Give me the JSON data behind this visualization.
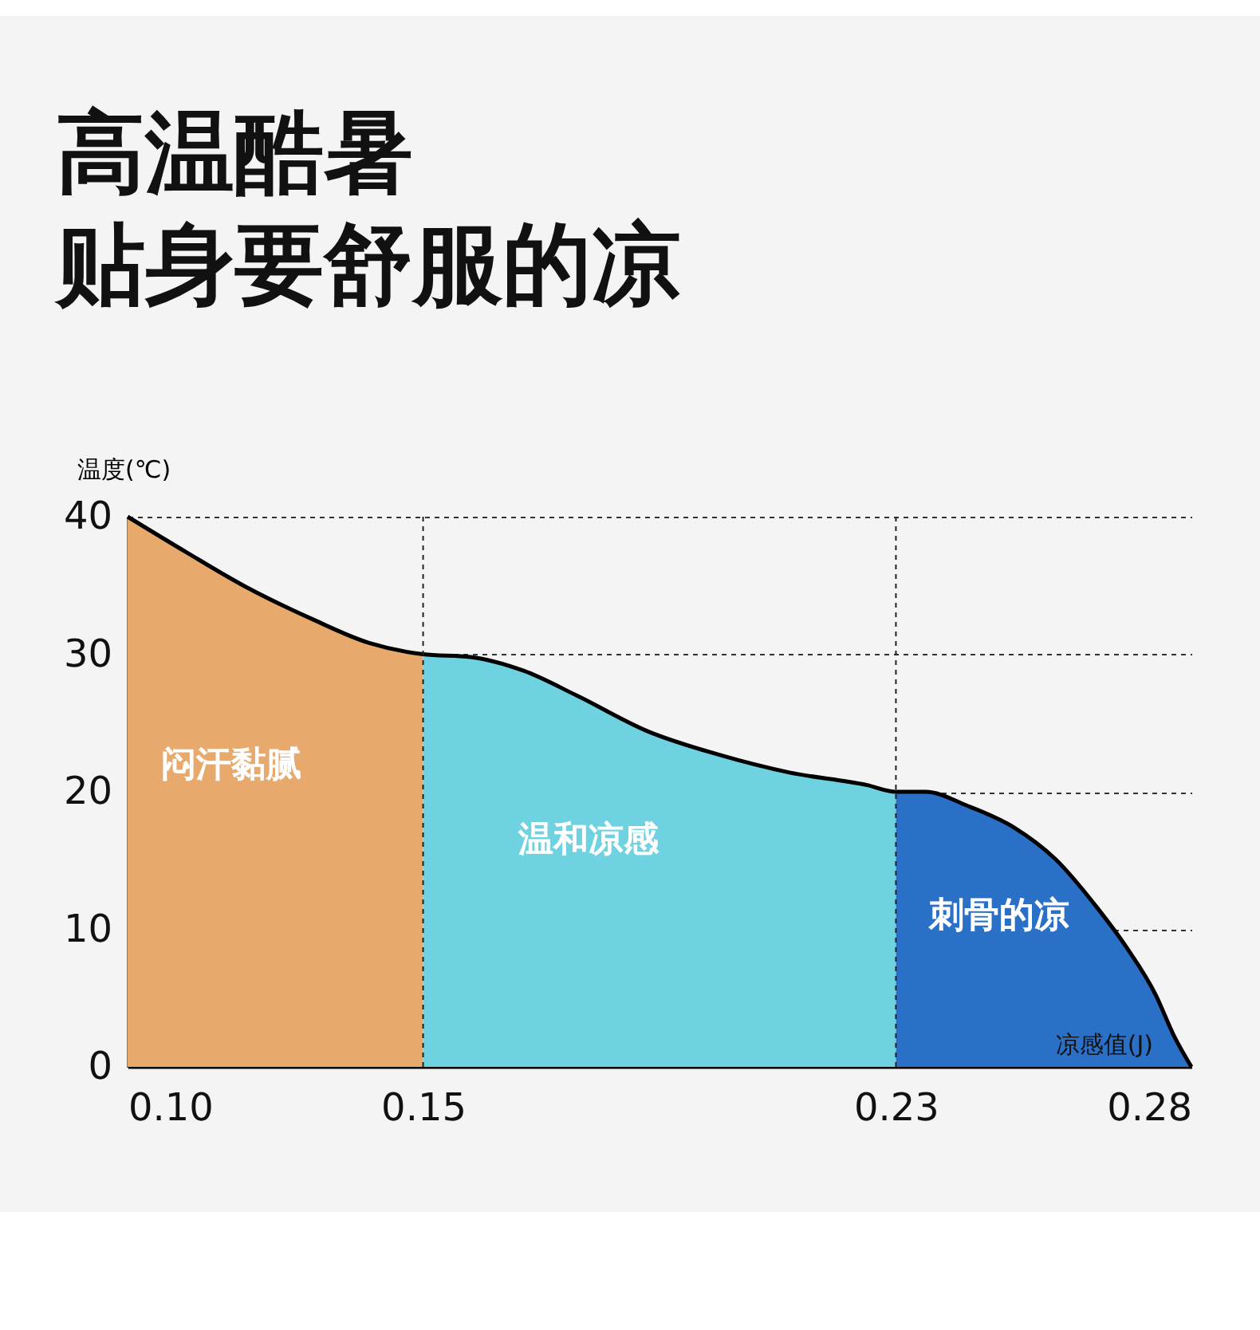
{
  "chart_data": {
    "type": "area",
    "title": "高温酷暑",
    "subtitle": "贴身要舒服的凉",
    "xlabel": "凉感值(J)",
    "ylabel": "温度(℃)",
    "xlim": [
      0.1,
      0.28
    ],
    "xticks": [
      {
        "value": 0.1,
        "label": "0.10"
      },
      0.15,
      0.23,
      0.28
    ],
    "ylim": [
      0,
      40
    ],
    "yticks": [
      0,
      10,
      20,
      30,
      40
    ],
    "grid": "y",
    "ref_lines": [
      {
        "axis": "x",
        "value": 0.15,
        "line_style": "dashed"
      },
      {
        "axis": "x",
        "value": 0.23,
        "line_style": "dashed"
      }
    ],
    "series": [
      {
        "name": "闷汗黏腻",
        "type": "area",
        "color": "#e8a96c",
        "x": [
          0.1,
          0.11,
          0.12,
          0.131,
          0.141,
          0.15
        ],
        "values": [
          40,
          37.4,
          34.9,
          32.6,
          30.8,
          30
        ]
      },
      {
        "name": "温和凉感",
        "type": "area",
        "color": "#6fd2e0",
        "x": [
          0.15,
          0.158,
          0.167,
          0.176,
          0.188,
          0.2,
          0.212,
          0.225,
          0.23
        ],
        "values": [
          30,
          29.8,
          28.8,
          27,
          24.4,
          22.7,
          21.4,
          20.5,
          20
        ]
      },
      {
        "name": "刺骨的凉",
        "type": "area",
        "color": "#2a70c6",
        "x": [
          0.23,
          0.235,
          0.242,
          0.25,
          0.257,
          0.264,
          0.269,
          0.274,
          0.277,
          0.28
        ],
        "values": [
          20,
          20,
          19,
          17.4,
          15.1,
          11.6,
          8.7,
          5.2,
          2.3,
          0
        ]
      },
      {
        "type": "line",
        "color": "#000000",
        "x": [
          0.1,
          0.11,
          0.12,
          0.131,
          0.141,
          0.15,
          0.158,
          0.167,
          0.176,
          0.188,
          0.2,
          0.212,
          0.225,
          0.23,
          0.235,
          0.242,
          0.25,
          0.257,
          0.264,
          0.269,
          0.274,
          0.277,
          0.28
        ],
        "values": [
          40,
          37.4,
          34.9,
          32.6,
          30.8,
          30,
          29.8,
          28.8,
          27,
          24.4,
          22.7,
          21.4,
          20.5,
          20,
          20,
          19,
          17.4,
          15.1,
          11.6,
          8.7,
          5.2,
          2.3,
          0
        ]
      }
    ]
  }
}
